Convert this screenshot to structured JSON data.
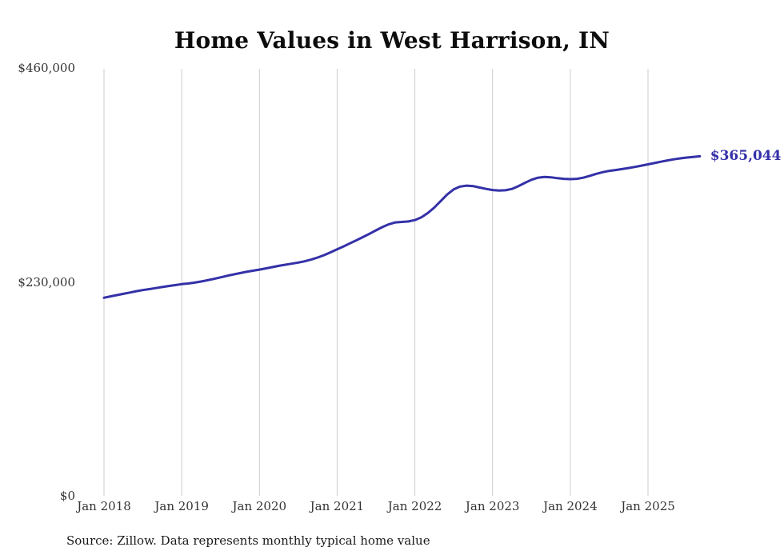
{
  "title": "Home Values in West Harrison, IN",
  "source": "Source: Zillow. Data represents monthly typical home value",
  "colors": {
    "line": "#3431a8",
    "grid": "#cccccc",
    "axis_text": "#333333",
    "title_text": "#0d0d0d"
  },
  "chart_data": {
    "type": "line",
    "title": "Home Values in West Harrison, IN",
    "frequency": "monthly",
    "ylim": [
      0,
      460000
    ],
    "y_ticks": [
      0,
      230000,
      460000
    ],
    "y_tick_labels": [
      "$0",
      "$230,000",
      "$460,000"
    ],
    "x_tick_labels": [
      "Jan 2018",
      "Jan 2019",
      "Jan 2020",
      "Jan 2021",
      "Jan 2022",
      "Jan 2023",
      "Jan 2024",
      "Jan 2025"
    ],
    "grid": "vertical-only",
    "legend": "none",
    "last_value": 365044,
    "last_value_label": "$365,044",
    "series": [
      {
        "name": "Typical home value",
        "start": "Jan 2018",
        "values": [
          213000,
          214400,
          215800,
          217200,
          218600,
          220000,
          221200,
          222300,
          223400,
          224500,
          225600,
          226600,
          227600,
          228300,
          229200,
          230400,
          231800,
          233300,
          234900,
          236500,
          238000,
          239500,
          240800,
          242000,
          243200,
          244500,
          245900,
          247300,
          248500,
          249600,
          250800,
          252200,
          254000,
          256200,
          258800,
          261800,
          265000,
          268200,
          271500,
          274800,
          278200,
          281800,
          285500,
          289000,
          292000,
          294000,
          294500,
          295000,
          296500,
          299500,
          304000,
          310000,
          317000,
          324000,
          329500,
          332500,
          333500,
          333000,
          331500,
          330000,
          328800,
          328200,
          328500,
          330000,
          333000,
          336500,
          339800,
          342000,
          342800,
          342500,
          341500,
          340800,
          340500,
          340800,
          342000,
          344000,
          346200,
          348000,
          349300,
          350300,
          351300,
          352400,
          353600,
          355000,
          356400,
          357800,
          359200,
          360600,
          361800,
          362800,
          363700,
          364400,
          365044
        ]
      }
    ]
  }
}
